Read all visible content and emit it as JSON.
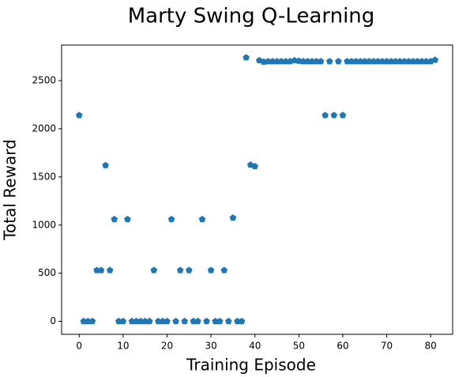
{
  "chart_data": {
    "type": "scatter",
    "title": "Marty Swing Q-Learning",
    "xlabel": "Training Episode",
    "ylabel": "Total Reward",
    "color": "#1f77b4",
    "marker": "pentagon",
    "grid": false,
    "xlim": [
      -4,
      85
    ],
    "ylim": [
      -135,
      2870
    ],
    "xticks": [
      0,
      10,
      20,
      30,
      40,
      50,
      60,
      70,
      80
    ],
    "yticks": [
      0,
      500,
      1000,
      1500,
      2000,
      2500
    ],
    "x": [
      0,
      1,
      2,
      3,
      4,
      5,
      6,
      7,
      8,
      9,
      10,
      11,
      12,
      13,
      14,
      15,
      16,
      17,
      18,
      19,
      20,
      21,
      22,
      23,
      24,
      25,
      26,
      27,
      28,
      29,
      30,
      31,
      32,
      33,
      34,
      35,
      36,
      37,
      38,
      39,
      40,
      41,
      42,
      43,
      44,
      45,
      46,
      47,
      48,
      49,
      50,
      51,
      52,
      53,
      54,
      55,
      56,
      57,
      58,
      59,
      60,
      61,
      62,
      63,
      64,
      65,
      66,
      67,
      68,
      69,
      70,
      71,
      72,
      73,
      74,
      75,
      76,
      77,
      78,
      79,
      80,
      81
    ],
    "values": [
      2140,
      0,
      0,
      0,
      530,
      530,
      1620,
      530,
      1060,
      0,
      0,
      1060,
      0,
      0,
      0,
      0,
      0,
      530,
      0,
      0,
      0,
      1060,
      0,
      530,
      0,
      530,
      0,
      0,
      1060,
      0,
      530,
      0,
      0,
      530,
      0,
      1075,
      0,
      0,
      2740,
      1625,
      1610,
      2710,
      2695,
      2700,
      2700,
      2700,
      2700,
      2700,
      2700,
      2710,
      2705,
      2700,
      2700,
      2700,
      2700,
      2700,
      2140,
      2700,
      2140,
      2700,
      2140,
      2700,
      2700,
      2700,
      2700,
      2700,
      2700,
      2700,
      2700,
      2700,
      2700,
      2700,
      2700,
      2700,
      2700,
      2700,
      2700,
      2700,
      2700,
      2700,
      2700,
      2715
    ]
  }
}
